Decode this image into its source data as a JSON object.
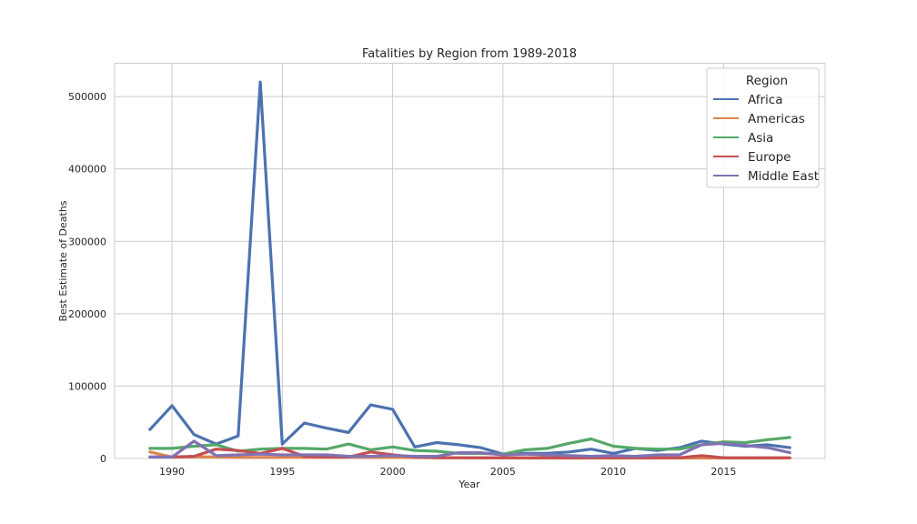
{
  "chart_data": {
    "type": "line",
    "title": "Fatalities by Region from 1989-2018",
    "xlabel": "Year",
    "ylabel": "Best Estimate of Deaths",
    "xlim": [
      1987.4,
      2019.6
    ],
    "ylim": [
      0,
      546000
    ],
    "x_ticks": [
      1990,
      1995,
      2000,
      2005,
      2010,
      2015
    ],
    "y_ticks": [
      0,
      100000,
      200000,
      300000,
      400000,
      500000
    ],
    "grid": true,
    "legend": {
      "title": "Region",
      "placement": "top-right"
    },
    "x": [
      1989,
      1990,
      1991,
      1992,
      1993,
      1994,
      1995,
      1996,
      1997,
      1998,
      1999,
      2000,
      2001,
      2002,
      2003,
      2004,
      2005,
      2006,
      2007,
      2008,
      2009,
      2010,
      2011,
      2012,
      2013,
      2014,
      2015,
      2016,
      2017,
      2018
    ],
    "series": [
      {
        "name": "Africa",
        "color": "#4c72b0",
        "values": [
          40000,
          73000,
          33000,
          20000,
          31000,
          520000,
          20000,
          49000,
          42000,
          36000,
          74000,
          68000,
          16000,
          22000,
          19000,
          15000,
          6000,
          7000,
          7000,
          9000,
          13000,
          7000,
          14000,
          11000,
          15000,
          24000,
          20000,
          17000,
          19000,
          15000
        ]
      },
      {
        "name": "Americas",
        "color": "#dd8452",
        "values": [
          9000,
          2000,
          2500,
          2000,
          1500,
          1500,
          1500,
          1500,
          1500,
          1500,
          1500,
          1500,
          1200,
          1000,
          1000,
          800,
          700,
          600,
          600,
          600,
          600,
          600,
          600,
          600,
          600,
          600,
          600,
          600,
          600,
          600
        ]
      },
      {
        "name": "Asia",
        "color": "#55a868",
        "values": [
          14000,
          14000,
          17000,
          19000,
          10000,
          13000,
          14000,
          14000,
          13000,
          20000,
          12000,
          16000,
          11000,
          10000,
          7000,
          7000,
          6000,
          12000,
          14000,
          21000,
          27000,
          17000,
          14000,
          13000,
          13000,
          19000,
          23000,
          22000,
          26000,
          29000
        ]
      },
      {
        "name": "Europe",
        "color": "#c44e52",
        "values": [
          2000,
          2000,
          3000,
          13000,
          11000,
          7000,
          14000,
          3000,
          2000,
          2000,
          9000,
          5000,
          2000,
          1000,
          1000,
          1000,
          1000,
          1000,
          1000,
          1000,
          1000,
          1000,
          1000,
          1000,
          1000,
          4000,
          1000,
          1000,
          1000,
          1000
        ]
      },
      {
        "name": "Middle East",
        "color": "#8172b3",
        "values": [
          2000,
          2000,
          24000,
          4000,
          5000,
          6000,
          5000,
          5000,
          5000,
          3000,
          3000,
          4000,
          3000,
          3000,
          8000,
          8000,
          5000,
          6000,
          5000,
          4000,
          3000,
          4000,
          3000,
          5000,
          5000,
          19000,
          21000,
          18000,
          15000,
          8000
        ]
      }
    ]
  }
}
